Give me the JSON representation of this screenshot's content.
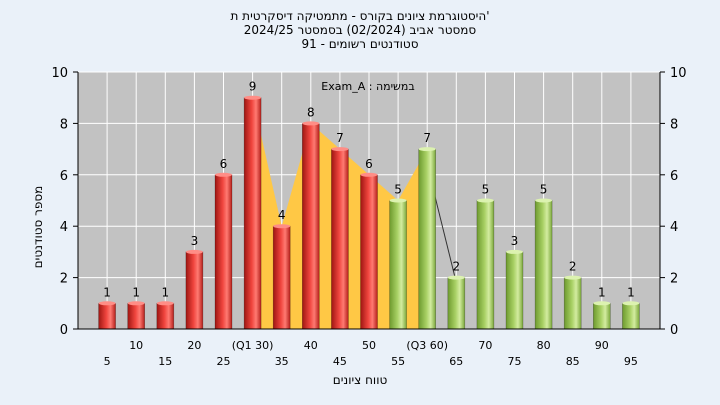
{
  "chart_data": {
    "type": "bar",
    "title_lines": [
      "היסטוגרמת ציונים בקורס - מתמטיקה דיסקרטית ת'",
      "2024/25 סמסטר אביב (02/2024) בסמסטר",
      "91 - סטודנטים רשומים"
    ],
    "legend_text": "Exam_A : במשימה",
    "ylabel": "מספר סטודנטים",
    "xlabel": "טווח ציונים",
    "ylim": [
      0,
      10
    ],
    "yticks": [
      0,
      2,
      4,
      6,
      8,
      10
    ],
    "bins": [
      5,
      10,
      15,
      20,
      25,
      30,
      35,
      40,
      45,
      50,
      55,
      60,
      65,
      70,
      75,
      80,
      85,
      90,
      95
    ],
    "xtick_labels": [
      "5",
      "10",
      "15",
      "20",
      "25",
      "(Q1 30)",
      "35",
      "40",
      "45",
      "50",
      "55",
      "(Q3 60)",
      "65",
      "70",
      "75",
      "80",
      "85",
      "90",
      "95"
    ],
    "values": [
      1,
      1,
      1,
      3,
      6,
      9,
      4,
      8,
      7,
      6,
      5,
      7,
      2,
      5,
      3,
      5,
      2,
      1,
      1
    ],
    "colors": [
      "red",
      "red",
      "red",
      "red",
      "red",
      "red",
      "red",
      "red",
      "red",
      "red",
      "green",
      "green",
      "green",
      "green",
      "green",
      "green",
      "green",
      "green",
      "green"
    ],
    "iqr_band": [
      30,
      60
    ],
    "grid": true,
    "palette": {
      "red": "#e23a34",
      "green": "#9dc75a",
      "band": "#ffc845",
      "plot_bg": "#c2c2c2",
      "page_bg": "#eaf1f9"
    }
  }
}
